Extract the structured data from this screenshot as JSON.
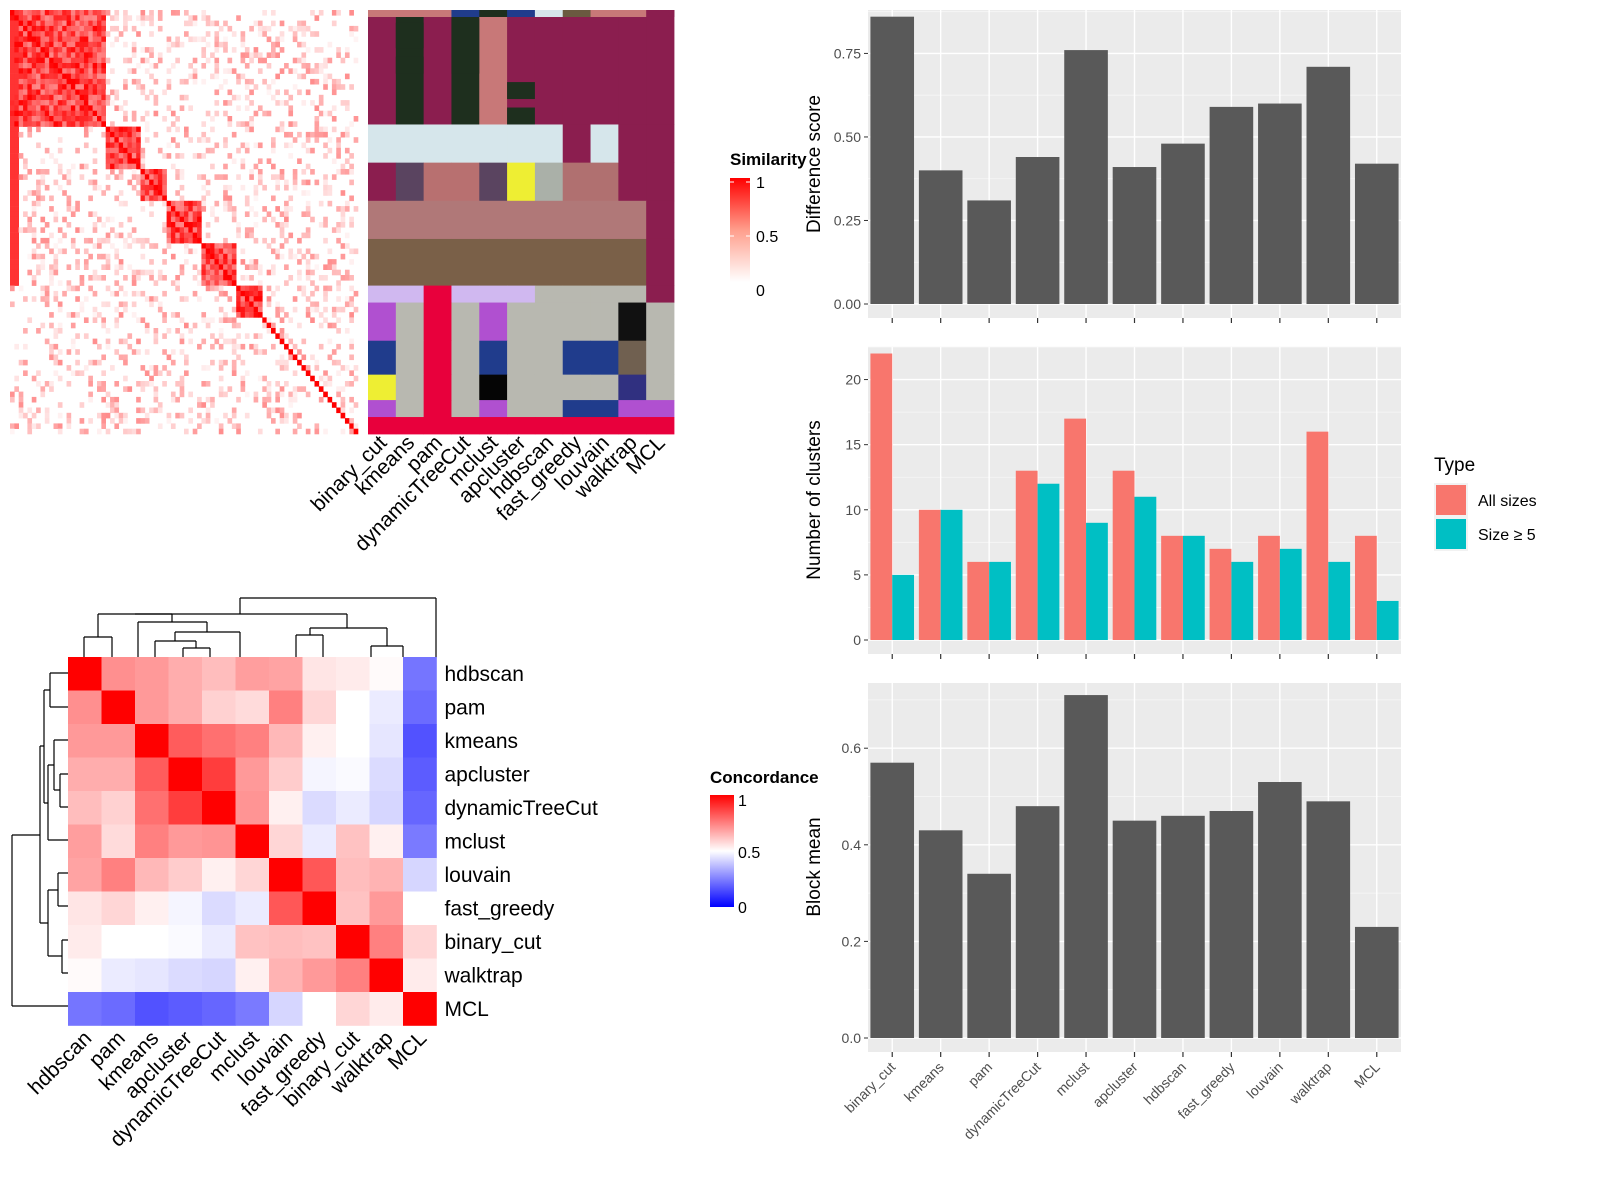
{
  "chart_data": [
    {
      "id": "similarity_heatmap",
      "type": "heatmap",
      "description_none": "",
      "legend": {
        "title": "Similarity",
        "ticks": [
          "1",
          "0.5",
          "0"
        ],
        "colors": [
          "#FF0000",
          "#FFFFFF"
        ]
      }
    },
    {
      "id": "cluster_membership_heatmap",
      "type": "heatmap",
      "columns": [
        "binary_cut",
        "kmeans",
        "pam",
        "dynamicTreeCut",
        "mclust",
        "apcluster",
        "hdbscan",
        "fast_greedy",
        "louvain",
        "walktrap",
        "MCL"
      ]
    },
    {
      "id": "concordance_heatmap",
      "type": "heatmap",
      "legend": {
        "title": "Concordance",
        "ticks": [
          "1",
          "0.5",
          "0"
        ],
        "colors": [
          "#FF0000",
          "#FFFFFF",
          "#0000FF"
        ]
      },
      "rows": [
        "hdbscan",
        "pam",
        "kmeans",
        "apcluster",
        "dynamicTreeCut",
        "mclust",
        "louvain",
        "fast_greedy",
        "binary_cut",
        "walktrap",
        "MCL"
      ],
      "columns": [
        "hdbscan",
        "pam",
        "kmeans",
        "apcluster",
        "dynamicTreeCut",
        "mclust",
        "louvain",
        "fast_greedy",
        "binary_cut",
        "walktrap",
        "MCL"
      ],
      "values": [
        [
          1.0,
          0.72,
          0.7,
          0.66,
          0.63,
          0.69,
          0.68,
          0.55,
          0.54,
          0.51,
          0.23
        ],
        [
          0.72,
          1.0,
          0.7,
          0.66,
          0.59,
          0.57,
          0.75,
          0.58,
          0.5,
          0.46,
          0.21
        ],
        [
          0.7,
          0.7,
          1.0,
          0.82,
          0.78,
          0.75,
          0.64,
          0.53,
          0.5,
          0.45,
          0.16
        ],
        [
          0.66,
          0.66,
          0.82,
          1.0,
          0.88,
          0.7,
          0.6,
          0.48,
          0.49,
          0.43,
          0.18
        ],
        [
          0.63,
          0.59,
          0.78,
          0.88,
          1.0,
          0.71,
          0.53,
          0.43,
          0.46,
          0.42,
          0.2
        ],
        [
          0.69,
          0.57,
          0.75,
          0.7,
          0.71,
          1.0,
          0.58,
          0.46,
          0.62,
          0.53,
          0.24
        ],
        [
          0.68,
          0.75,
          0.64,
          0.6,
          0.53,
          0.58,
          1.0,
          0.83,
          0.63,
          0.65,
          0.42
        ],
        [
          0.55,
          0.58,
          0.53,
          0.48,
          0.43,
          0.46,
          0.83,
          1.0,
          0.62,
          0.7,
          0.5
        ],
        [
          0.54,
          0.5,
          0.5,
          0.49,
          0.46,
          0.62,
          0.63,
          0.62,
          1.0,
          0.75,
          0.58
        ],
        [
          0.51,
          0.46,
          0.45,
          0.43,
          0.42,
          0.53,
          0.65,
          0.7,
          0.75,
          1.0,
          0.54
        ],
        [
          0.23,
          0.21,
          0.16,
          0.18,
          0.2,
          0.24,
          0.42,
          0.5,
          0.58,
          0.54,
          1.0
        ]
      ]
    },
    {
      "id": "difference_score",
      "type": "bar",
      "ylabel": "Difference score",
      "categories": [
        "binary_cut",
        "kmeans",
        "pam",
        "dynamicTreeCut",
        "mclust",
        "apcluster",
        "hdbscan",
        "fast_greedy",
        "louvain",
        "walktrap",
        "MCL"
      ],
      "values": [
        0.86,
        0.4,
        0.31,
        0.44,
        0.76,
        0.41,
        0.48,
        0.59,
        0.6,
        0.71,
        0.42
      ],
      "ylim": [
        0,
        0.88
      ],
      "yticks": [
        "0.00",
        "0.25",
        "0.50",
        "0.75"
      ],
      "grid": true
    },
    {
      "id": "number_of_clusters",
      "type": "bar",
      "ylabel": "Number of clusters",
      "categories": [
        "binary_cut",
        "kmeans",
        "pam",
        "dynamicTreeCut",
        "mclust",
        "apcluster",
        "hdbscan",
        "fast_greedy",
        "louvain",
        "walktrap",
        "MCL"
      ],
      "series": [
        {
          "name": "All sizes",
          "values": [
            22,
            10,
            6,
            13,
            17,
            13,
            8,
            7,
            8,
            16,
            8
          ]
        },
        {
          "name": "Size ≥ 5",
          "values": [
            5,
            10,
            6,
            12,
            9,
            11,
            8,
            6,
            7,
            6,
            3
          ]
        }
      ],
      "legend": {
        "title": "Type",
        "position": "right"
      },
      "colors": [
        "#F8766D",
        "#00BFC4"
      ],
      "ylim": [
        0,
        22.5
      ],
      "yticks": [
        "0",
        "5",
        "10",
        "15",
        "20"
      ],
      "grid": true
    },
    {
      "id": "block_mean",
      "type": "bar",
      "ylabel": "Block mean",
      "categories": [
        "binary_cut",
        "kmeans",
        "pam",
        "dynamicTreeCut",
        "mclust",
        "apcluster",
        "hdbscan",
        "fast_greedy",
        "louvain",
        "walktrap",
        "MCL"
      ],
      "values": [
        0.57,
        0.43,
        0.34,
        0.48,
        0.71,
        0.45,
        0.46,
        0.47,
        0.53,
        0.49,
        0.23
      ],
      "ylim": [
        0,
        0.735
      ],
      "yticks": [
        "0.0",
        "0.2",
        "0.4",
        "0.6"
      ],
      "grid": true
    }
  ]
}
